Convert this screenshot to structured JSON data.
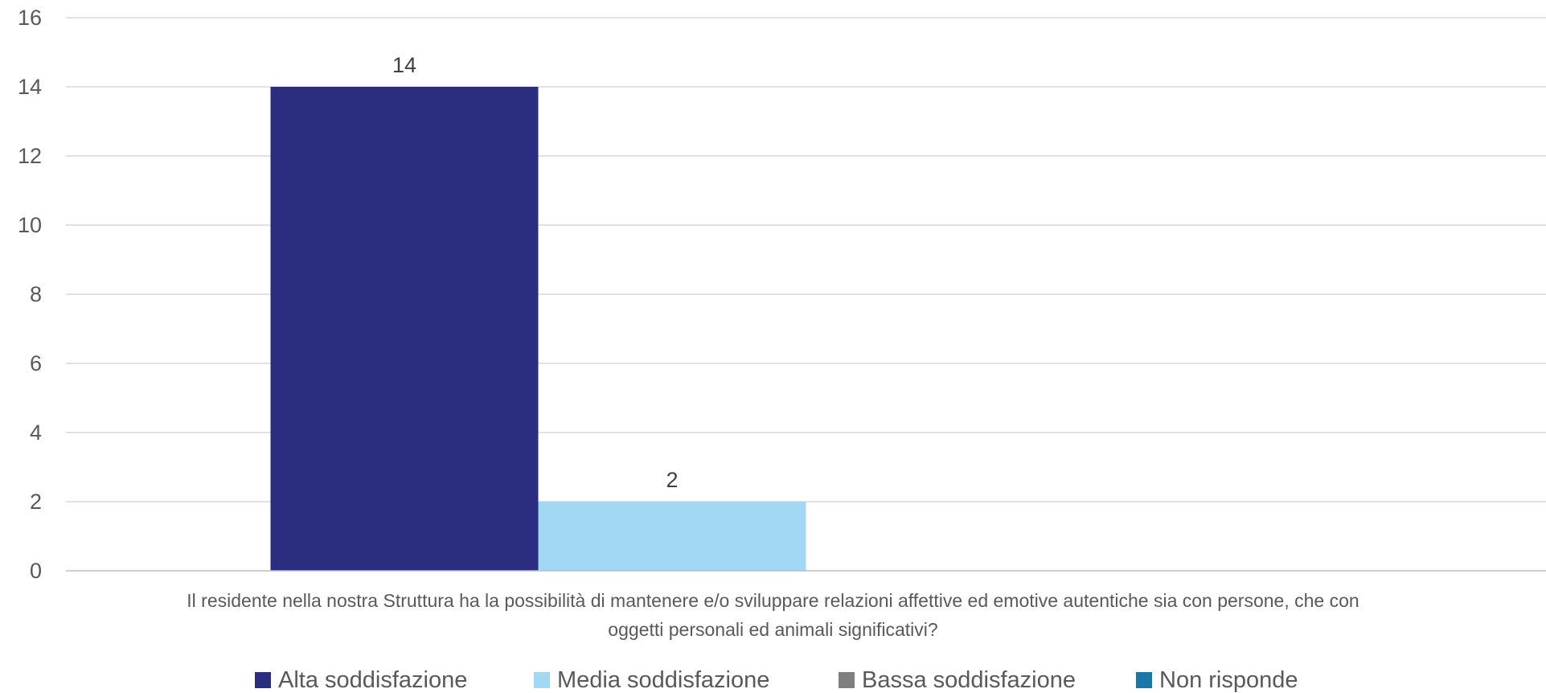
{
  "chart_data": {
    "type": "bar",
    "categories": [
      "Il residente nella nostra Struttura ha la possibilità di mantenere e/o sviluppare relazioni affettive ed emotive autentiche sia con persone, che con oggetti personali ed animali significativi?"
    ],
    "category_lines": [
      "Il residente nella nostra Struttura ha la possibilità di mantenere e/o sviluppare relazioni affettive ed emotive autentiche sia con persone, che con",
      "oggetti personali ed animali significativi?"
    ],
    "series": [
      {
        "name": "Alta soddisfazione",
        "values": [
          14
        ],
        "color": "#2b2d7e",
        "label": "14"
      },
      {
        "name": "Media soddisfazione",
        "values": [
          2
        ],
        "color": "#a3d8f4",
        "label": "2"
      },
      {
        "name": "Bassa soddisfazione",
        "values": [
          0
        ],
        "color": "#7f7f7f",
        "label": ""
      },
      {
        "name": "Non risponde",
        "values": [
          0
        ],
        "color": "#1a77a8",
        "label": ""
      }
    ],
    "ylim": [
      0,
      16
    ],
    "yticks": [
      0,
      2,
      4,
      6,
      8,
      10,
      12,
      14,
      16
    ],
    "grid": true,
    "legend_position": "bottom",
    "title": "",
    "xlabel": "",
    "ylabel": ""
  }
}
